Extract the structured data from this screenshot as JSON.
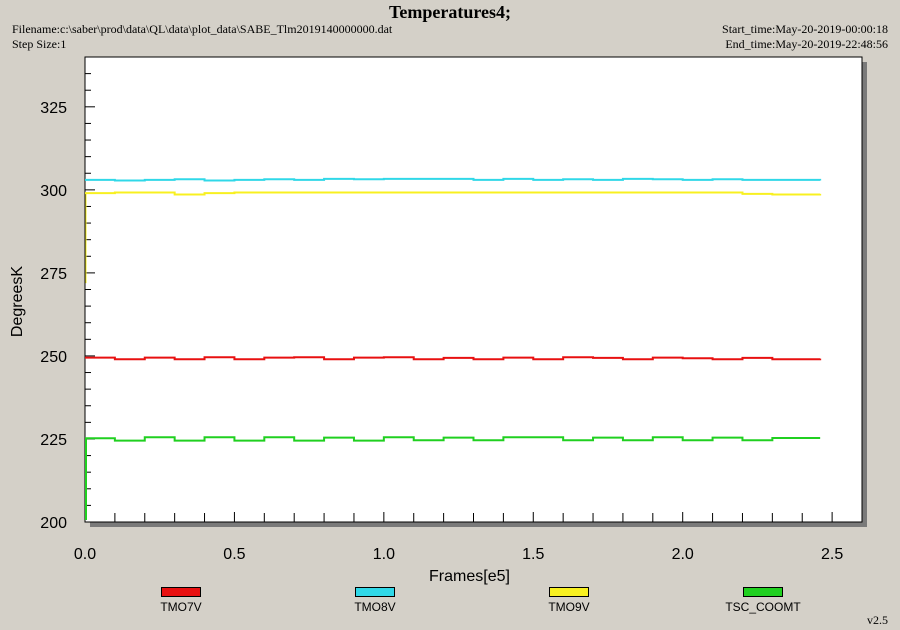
{
  "header": {
    "title": "Temperatures4;",
    "filename": "Filename:c:\\saber\\prod\\data\\QL\\data\\plot_data\\SABE_Tlm2019140000000.dat",
    "step_size": "Step Size:1",
    "start_time": "Start_time:May-20-2019-00:00:18",
    "end_time": "End_time:May-20-2019-22:48:56"
  },
  "footer": {
    "version": "v2.5"
  },
  "chart_data": {
    "type": "line",
    "xlabel": "Frames[e5]",
    "ylabel": "DegreesK",
    "xlim": [
      0,
      2.6
    ],
    "ylim": [
      200,
      340
    ],
    "xticks": [
      0.0,
      0.5,
      1.0,
      1.5,
      2.0,
      2.5
    ],
    "xtick_labels": [
      "0.0",
      "0.5",
      "1.0",
      "1.5",
      "2.0",
      "2.5"
    ],
    "yticks": [
      200,
      225,
      250,
      275,
      300,
      325
    ],
    "ytick_labels": [
      "200",
      "225",
      "250",
      "275",
      "300",
      "325"
    ],
    "grid": false,
    "legend_position": "bottom",
    "series": [
      {
        "name": "TMO7V",
        "color": "#e81010",
        "x": [
          0.0,
          0.1,
          0.2,
          0.3,
          0.4,
          0.5,
          0.6,
          0.7,
          0.8,
          0.9,
          1.0,
          1.1,
          1.2,
          1.3,
          1.4,
          1.5,
          1.6,
          1.7,
          1.8,
          1.9,
          2.0,
          2.1,
          2.2,
          2.3,
          2.46
        ],
        "y": [
          249.5,
          249.0,
          249.5,
          249.0,
          249.6,
          249.0,
          249.5,
          249.6,
          249.0,
          249.5,
          249.6,
          249.0,
          249.4,
          249.0,
          249.5,
          249.0,
          249.6,
          249.4,
          249.0,
          249.5,
          249.3,
          249.0,
          249.4,
          249.0,
          249.2
        ]
      },
      {
        "name": "TMO8V",
        "color": "#30d8e8",
        "x": [
          0.0,
          0.1,
          0.2,
          0.3,
          0.4,
          0.5,
          0.6,
          0.7,
          0.8,
          0.9,
          1.0,
          1.1,
          1.2,
          1.3,
          1.4,
          1.5,
          1.6,
          1.7,
          1.8,
          1.9,
          2.0,
          2.1,
          2.2,
          2.3,
          2.46
        ],
        "y": [
          303.0,
          302.8,
          303.0,
          303.2,
          302.8,
          303.0,
          303.2,
          303.0,
          303.3,
          303.2,
          303.3,
          303.3,
          303.3,
          303.0,
          303.3,
          303.0,
          303.2,
          303.0,
          303.3,
          303.2,
          303.0,
          303.2,
          303.0,
          303.0,
          302.8
        ]
      },
      {
        "name": "TMO9V",
        "color": "#f8f020",
        "x": [
          0.0,
          0.1,
          0.2,
          0.3,
          0.4,
          0.5,
          0.6,
          0.7,
          0.8,
          0.9,
          1.0,
          1.1,
          1.2,
          1.3,
          1.4,
          1.5,
          1.6,
          1.7,
          1.8,
          1.9,
          2.0,
          2.1,
          2.2,
          2.3,
          2.46
        ],
        "y": [
          299.0,
          299.2,
          299.2,
          298.6,
          299.0,
          299.2,
          299.2,
          299.2,
          299.2,
          299.2,
          299.2,
          299.2,
          299.2,
          299.2,
          299.2,
          299.2,
          299.2,
          299.2,
          299.2,
          299.2,
          299.2,
          299.2,
          298.8,
          298.6,
          298.8
        ]
      },
      {
        "name": "TSC_COOMT",
        "color": "#20d020",
        "x": [
          0.0,
          0.1,
          0.2,
          0.3,
          0.4,
          0.5,
          0.6,
          0.7,
          0.8,
          0.9,
          1.0,
          1.1,
          1.2,
          1.3,
          1.4,
          1.5,
          1.6,
          1.7,
          1.8,
          1.9,
          2.0,
          2.1,
          2.2,
          2.3,
          2.46
        ],
        "y": [
          225.2,
          224.5,
          225.5,
          224.5,
          225.5,
          224.5,
          225.5,
          224.5,
          225.4,
          224.5,
          225.5,
          224.6,
          225.4,
          224.6,
          225.5,
          225.5,
          224.6,
          225.4,
          224.6,
          225.5,
          224.6,
          225.4,
          224.6,
          225.3,
          225.3
        ]
      }
    ]
  }
}
